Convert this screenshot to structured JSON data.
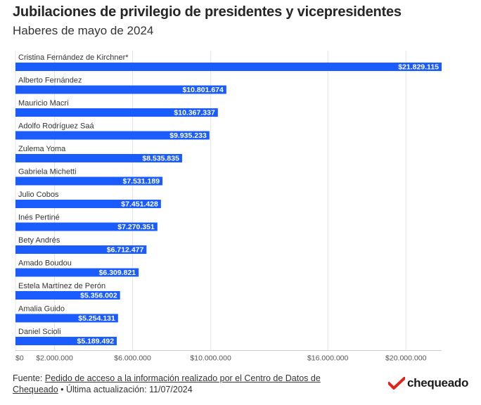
{
  "title": "Jubilaciones de privilegio de presidentes y vicepresidentes",
  "subtitle": "Haberes de mayo de 2024",
  "colors": {
    "bar": "#1a5cff",
    "grid": "#e4e4e4",
    "logo_red": "#e2231a"
  },
  "chart_data": {
    "type": "bar",
    "orientation": "horizontal",
    "title": "Jubilaciones de privilegio de presidentes y vicepresidentes",
    "subtitle": "Haberes de mayo de 2024",
    "xlabel": "",
    "ylabel": "",
    "xlim": [
      0,
      21829115
    ],
    "categories": [
      "Cristina Fernández de Kirchner*",
      "Alberto Fernández",
      "Mauricio Macri",
      "Adolfo Rodríguez Saá",
      "Zulema Yoma",
      "Gabriela Michetti",
      "Julio Cobos",
      "Inés Pertiné",
      "Bety Andrés",
      "Amado Boudou",
      "Estela Martínez de Perón",
      "Amalia Guido",
      "Daniel Scioli"
    ],
    "values": [
      21829115,
      10801674,
      10367337,
      9935233,
      8535835,
      7531189,
      7451428,
      7270351,
      6712477,
      6309821,
      5356002,
      5254131,
      5189492
    ],
    "value_labels": [
      "$21.829.115",
      "$10.801.674",
      "$10.367.337",
      "$9.935.233",
      "$8.535.835",
      "$7.531.189",
      "$7.451.428",
      "$7.270.351",
      "$6.712.477",
      "$6.309.821",
      "$5.356.002",
      "$5.254.131",
      "$5.189.492"
    ],
    "x_ticks": [
      {
        "value": 0,
        "label": "$0"
      },
      {
        "value": 2000000,
        "label": "$2.000.000"
      },
      {
        "value": 6000000,
        "label": "$6.000.000"
      },
      {
        "value": 10000000,
        "label": "$10.000.000"
      },
      {
        "value": 16000000,
        "label": "$16.000.000"
      },
      {
        "value": 20000000,
        "label": "$20.000.000"
      }
    ],
    "grid": true
  },
  "footer": {
    "prefix": "Fuente: ",
    "link": "Pedido de acceso a la información realizado por el Centro de Datos de Chequeado",
    "suffix": " • Última actualización: 11/07/2024"
  },
  "logo": {
    "text": "chequeado",
    "icon": "check-mark-icon"
  }
}
